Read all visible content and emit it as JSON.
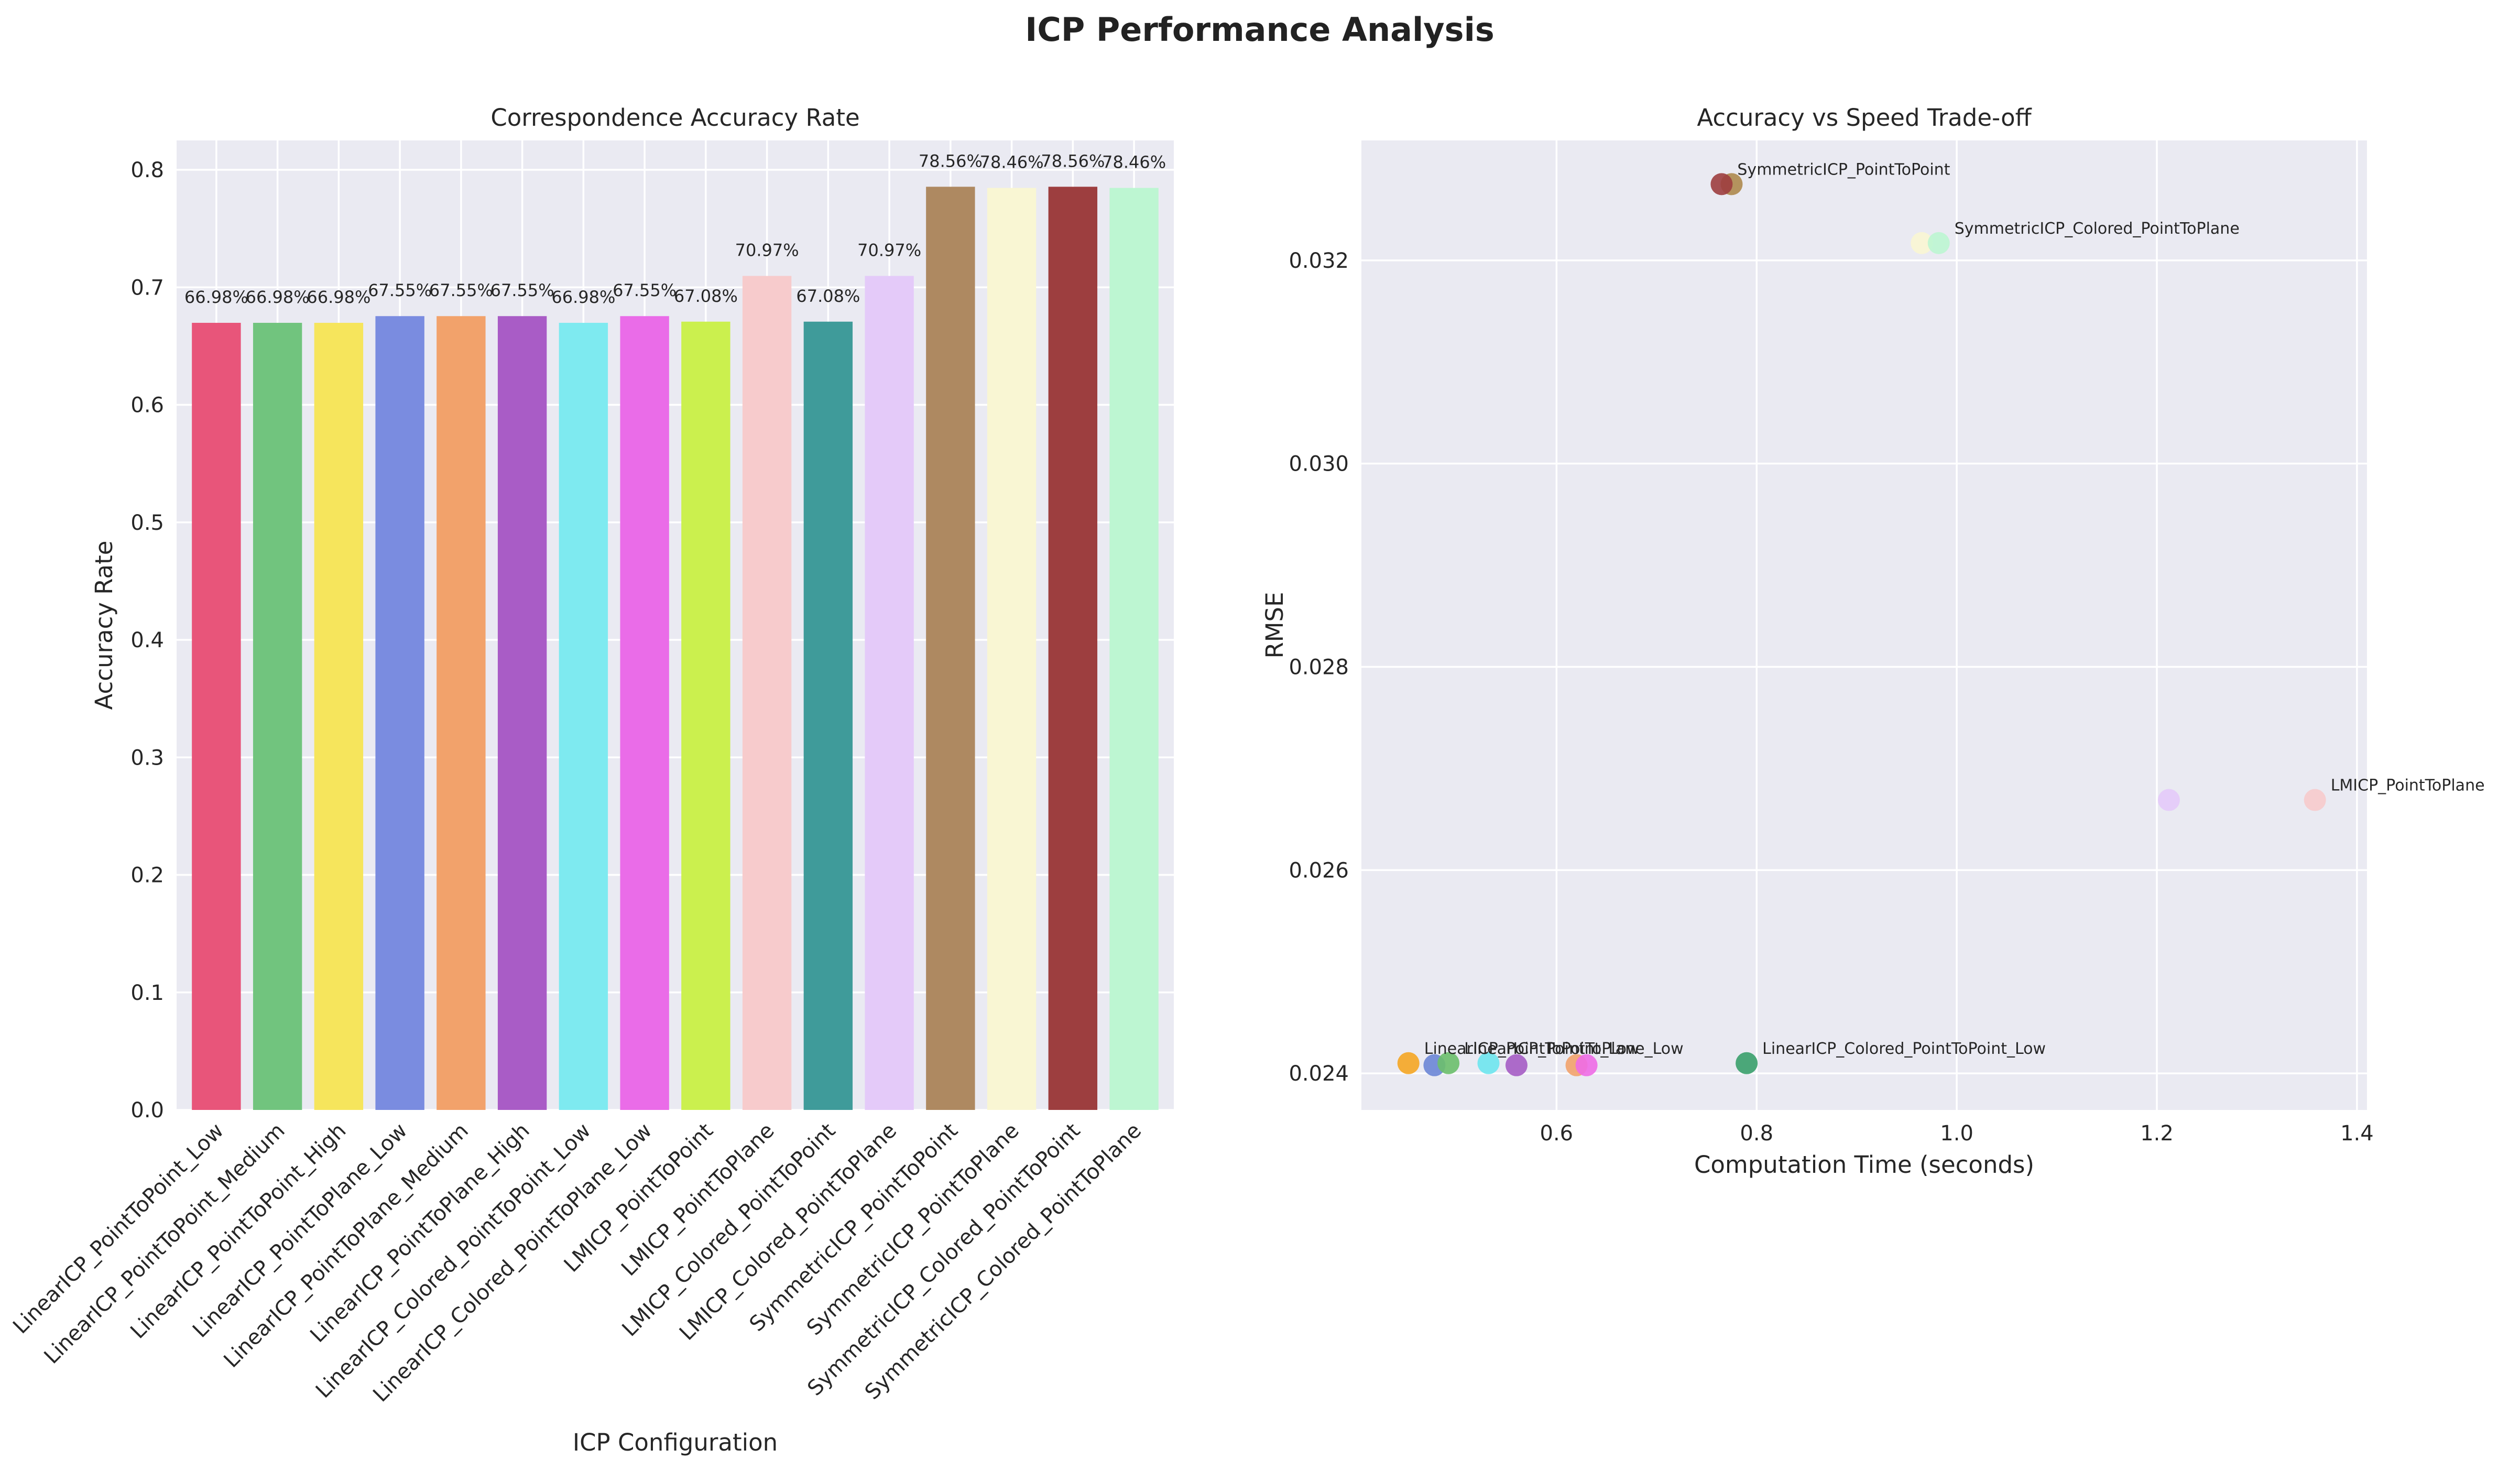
{
  "figure": {
    "title": "ICP Performance Analysis"
  },
  "chart_data": [
    {
      "type": "bar",
      "title": "Correspondence Accuracy Rate",
      "xlabel": "ICP Configuration",
      "ylabel": "Accuracy Rate",
      "ylim": [
        0,
        0.825
      ],
      "yticks": [
        "0.0",
        "0.1",
        "0.2",
        "0.3",
        "0.4",
        "0.5",
        "0.6",
        "0.7",
        "0.8"
      ],
      "grid": true,
      "categories": [
        "LinearICP_PointToPoint_Low",
        "LinearICP_PointToPoint_Medium",
        "LinearICP_PointToPoint_High",
        "LinearICP_PointToPlane_Low",
        "LinearICP_PointToPlane_Medium",
        "LinearICP_PointToPlane_High",
        "LinearICP_Colored_PointToPoint_Low",
        "LinearICP_Colored_PointToPlane_Low",
        "LMICP_PointToPoint",
        "LMICP_PointToPlane",
        "LMICP_Colored_PointToPoint",
        "LMICP_Colored_PointToPlane",
        "SymmetricICP_PointToPoint",
        "SymmetricICP_PointToPlane",
        "SymmetricICP_Colored_PointToPoint",
        "SymmetricICP_Colored_PointToPlane"
      ],
      "values": [
        0.6698,
        0.6698,
        0.6698,
        0.6755,
        0.6755,
        0.6755,
        0.6698,
        0.6755,
        0.6708,
        0.7097,
        0.6708,
        0.7097,
        0.7856,
        0.7846,
        0.7856,
        0.7846
      ],
      "value_labels": [
        "66.98%",
        "66.98%",
        "66.98%",
        "67.55%",
        "67.55%",
        "67.55%",
        "66.98%",
        "67.55%",
        "67.08%",
        "70.97%",
        "67.08%",
        "70.97%",
        "78.56%",
        "78.46%",
        "78.56%",
        "78.46%"
      ],
      "colors": [
        "#e8557a",
        "#71c47e",
        "#f6e55c",
        "#7a8ce0",
        "#f2a26b",
        "#a95cc6",
        "#7eeaf0",
        "#ea6ce8",
        "#cbf04e",
        "#f7cbcc",
        "#3f9b9a",
        "#e4caf9",
        "#ae8961",
        "#f9f6d3",
        "#9d3e3f",
        "#bdf6d2"
      ]
    },
    {
      "type": "scatter",
      "title": "Accuracy vs Speed Trade-off",
      "xlabel": "Computation Time (seconds)",
      "ylabel": "RMSE",
      "xlim": [
        0.405,
        1.41
      ],
      "ylim": [
        0.02364,
        0.03318
      ],
      "xticks": [
        "0.6",
        "0.8",
        "1.0",
        "1.2",
        "1.4"
      ],
      "xtick_values": [
        0.6,
        0.8,
        1.0,
        1.2,
        1.4
      ],
      "yticks": [
        "0.024",
        "0.026",
        "0.028",
        "0.030",
        "0.032"
      ],
      "ytick_values": [
        0.024,
        0.026,
        0.028,
        0.03,
        0.032
      ],
      "grid": true,
      "points": [
        {
          "x": 0.452,
          "y": 0.0241,
          "color": "#f5a623",
          "label": "LinearICP_PointToPoint_Low"
        },
        {
          "x": 0.478,
          "y": 0.02408,
          "color": "#6b86d6",
          "label": ""
        },
        {
          "x": 0.492,
          "y": 0.0241,
          "color": "#6cbf6c",
          "label": "LinearICP_PointToPlane_Low"
        },
        {
          "x": 0.532,
          "y": 0.0241,
          "color": "#6ee6ee",
          "label": ""
        },
        {
          "x": 0.56,
          "y": 0.02408,
          "color": "#a55cc4",
          "label": ""
        },
        {
          "x": 0.62,
          "y": 0.02408,
          "color": "#f2a26b",
          "label": ""
        },
        {
          "x": 0.63,
          "y": 0.02408,
          "color": "#ee6ce6",
          "label": ""
        },
        {
          "x": 0.79,
          "y": 0.0241,
          "color": "#3aa06b",
          "label": "LinearICP_Colored_PointToPoint_Low"
        },
        {
          "x": 0.775,
          "y": 0.03275,
          "color": "#ae8a4e",
          "label": ""
        },
        {
          "x": 0.765,
          "y": 0.03275,
          "color": "#9d3e3f",
          "label": "SymmetricICP_PointToPoint"
        },
        {
          "x": 0.965,
          "y": 0.03217,
          "color": "#f9f6d3",
          "label": ""
        },
        {
          "x": 0.982,
          "y": 0.03217,
          "color": "#bdf6d2",
          "label": "SymmetricICP_Colored_PointToPlane"
        },
        {
          "x": 1.212,
          "y": 0.02669,
          "color": "#e4caf9",
          "label": ""
        },
        {
          "x": 1.358,
          "y": 0.02669,
          "color": "#f7cbcc",
          "label": "LMICP_PointToPlane"
        }
      ]
    }
  ]
}
